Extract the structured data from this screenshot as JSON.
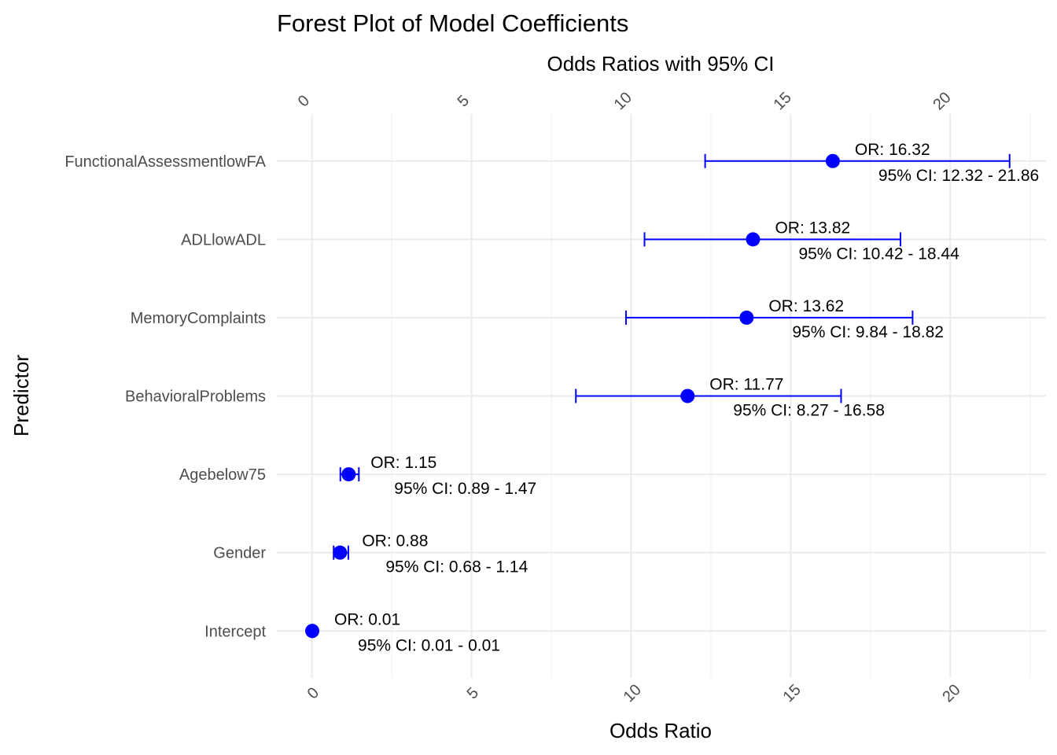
{
  "chart_data": {
    "type": "forest",
    "title": "Forest Plot of Model Coefficients",
    "subtitle": "Odds Ratios with 95% CI",
    "xlabel": "Odds Ratio",
    "ylabel": "Predictor",
    "xlim": [
      -1.1,
      23
    ],
    "xticks": [
      "0",
      "5",
      "10",
      "15",
      "20"
    ],
    "grid": true,
    "point_color": "#0000ff",
    "predictors": [
      {
        "name": "Intercept",
        "or": 0.01,
        "lo": 0.01,
        "hi": 0.01,
        "or_label": "OR: 0.01",
        "ci_label": "95% CI: 0.01 - 0.01"
      },
      {
        "name": "Gender",
        "or": 0.88,
        "lo": 0.68,
        "hi": 1.14,
        "or_label": "OR: 0.88",
        "ci_label": "95% CI: 0.68 - 1.14"
      },
      {
        "name": "Agebelow75",
        "or": 1.15,
        "lo": 0.89,
        "hi": 1.47,
        "or_label": "OR: 1.15",
        "ci_label": "95% CI: 0.89 - 1.47"
      },
      {
        "name": "BehavioralProblems",
        "or": 11.77,
        "lo": 8.27,
        "hi": 16.58,
        "or_label": "OR: 11.77",
        "ci_label": "95% CI: 8.27 - 16.58"
      },
      {
        "name": "MemoryComplaints",
        "or": 13.62,
        "lo": 9.84,
        "hi": 18.82,
        "or_label": "OR: 13.62",
        "ci_label": "95% CI: 9.84 - 18.82"
      },
      {
        "name": "ADLlowADL",
        "or": 13.82,
        "lo": 10.42,
        "hi": 18.44,
        "or_label": "OR: 13.82",
        "ci_label": "95% CI: 10.42 - 18.44"
      },
      {
        "name": "FunctionalAssessmentlowFA",
        "or": 16.32,
        "lo": 12.32,
        "hi": 21.86,
        "or_label": "OR: 16.32",
        "ci_label": "95% CI: 12.32 - 21.86"
      }
    ]
  }
}
